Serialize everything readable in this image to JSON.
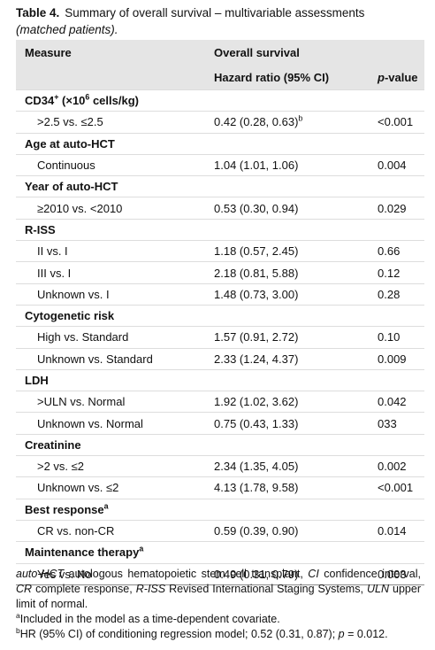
{
  "caption": {
    "label": "Table 4.",
    "title": "Summary of overall survival – multivariable assessments",
    "subtitle": "(matched patients)."
  },
  "table": {
    "header": {
      "measure": "Measure",
      "outcome": "Overall survival",
      "hr": "Hazard ratio (95% CI)",
      "p": [
        {
          "t": "p",
          "s": "i"
        },
        {
          "t": "-value"
        }
      ]
    },
    "groups": [
      {
        "label": [
          {
            "t": "CD34"
          },
          {
            "t": "+",
            "s": "sup"
          },
          {
            "t": " (×10"
          },
          {
            "t": "6",
            "s": "sup"
          },
          {
            "t": " cells/kg)"
          }
        ],
        "rows": [
          {
            "measure": ">2.5 vs. ≤2.5",
            "hr": [
              {
                "t": "0.42 (0.28, 0.63)"
              },
              {
                "t": "b",
                "s": "sup"
              }
            ],
            "p": "<0.001"
          }
        ]
      },
      {
        "label": "Age at auto-HCT",
        "rows": [
          {
            "measure": "Continuous",
            "hr": "1.04 (1.01, 1.06)",
            "p": "0.004"
          }
        ]
      },
      {
        "label": "Year of auto-HCT",
        "rows": [
          {
            "measure": "≥2010 vs. <2010",
            "hr": "0.53 (0.30, 0.94)",
            "p": "0.029"
          }
        ]
      },
      {
        "label": "R-ISS",
        "rows": [
          {
            "measure": "II vs. I",
            "hr": "1.18 (0.57, 2.45)",
            "p": "0.66"
          },
          {
            "measure": "III vs. I",
            "hr": "2.18 (0.81, 5.88)",
            "p": "0.12"
          },
          {
            "measure": "Unknown vs. I",
            "hr": "1.48 (0.73, 3.00)",
            "p": "0.28"
          }
        ]
      },
      {
        "label": "Cytogenetic risk",
        "rows": [
          {
            "measure": "High vs. Standard",
            "hr": "1.57 (0.91, 2.72)",
            "p": "0.10"
          },
          {
            "measure": "Unknown vs. Standard",
            "hr": "2.33 (1.24, 4.37)",
            "p": "0.009"
          }
        ]
      },
      {
        "label": "LDH",
        "rows": [
          {
            "measure": ">ULN vs. Normal",
            "hr": "1.92 (1.02, 3.62)",
            "p": "0.042"
          },
          {
            "measure": "Unknown vs. Normal",
            "hr": "0.75 (0.43, 1.33)",
            "p": "033"
          }
        ]
      },
      {
        "label": "Creatinine",
        "rows": [
          {
            "measure": ">2 vs. ≤2",
            "hr": "2.34 (1.35, 4.05)",
            "p": "0.002"
          },
          {
            "measure": "Unknown vs. ≤2",
            "hr": "4.13 (1.78, 9.58)",
            "p": "<0.001"
          }
        ]
      },
      {
        "label": [
          {
            "t": "Best response"
          },
          {
            "t": "a",
            "s": "sup"
          }
        ],
        "rows": [
          {
            "measure": "CR vs. non-CR",
            "hr": "0.59 (0.39, 0.90)",
            "p": "0.014"
          }
        ]
      },
      {
        "label": [
          {
            "t": "Maintenance therapy"
          },
          {
            "t": "a",
            "s": "sup"
          }
        ],
        "rows": [
          {
            "measure": "Yes vs. No",
            "hr": "0.49 (0.31, 0.79)",
            "p": "0.003"
          }
        ]
      }
    ]
  },
  "footnotes": {
    "abbreviations": [
      {
        "t": "auto-HCT",
        "s": "i"
      },
      {
        "t": " autologous hematopoietic stem cell transplant, "
      },
      {
        "t": "CI",
        "s": "i"
      },
      {
        "t": " confidence interval, "
      },
      {
        "t": "CR",
        "s": "i"
      },
      {
        "t": " complete response, "
      },
      {
        "t": "R-ISS",
        "s": "i"
      },
      {
        "t": " Revised International Staging Systems, "
      },
      {
        "t": "ULN",
        "s": "i"
      },
      {
        "t": " upper limit of normal."
      }
    ],
    "notes": [
      [
        {
          "t": "a",
          "s": "sup"
        },
        {
          "t": "Included in the model as a time-dependent covariate."
        }
      ],
      [
        {
          "t": "b",
          "s": "sup"
        },
        {
          "t": "HR (95% CI) of conditioning regression model; 0.52 (0.31, 0.87); "
        },
        {
          "t": "p",
          "s": "i"
        },
        {
          "t": " = 0.012."
        }
      ]
    ]
  }
}
